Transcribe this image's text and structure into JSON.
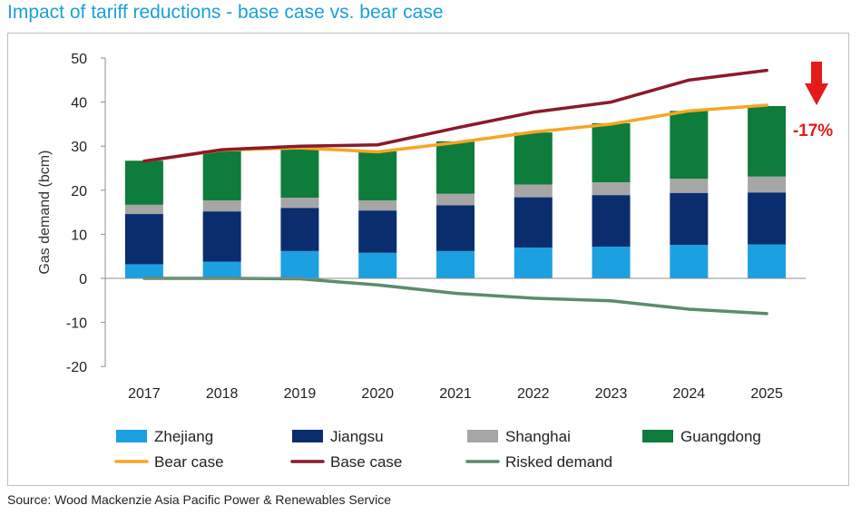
{
  "title": "Impact of tariff reductions - base case vs. bear case",
  "source": "Source: Wood Mackenzie Asia Pacific Power & Renewables Service",
  "chart_data": {
    "type": "bar",
    "stacked": true,
    "categories": [
      "2017",
      "2018",
      "2019",
      "2020",
      "2021",
      "2022",
      "2023",
      "2024",
      "2025"
    ],
    "ylabel": "Gas demand (bcm)",
    "ylim": [
      -20,
      50
    ],
    "yticks": [
      "-20",
      "-10",
      "0",
      "10",
      "20",
      "30",
      "40",
      "50"
    ],
    "grid": false,
    "legend_placement": "bottom",
    "series": [
      {
        "name": "Zhejiang",
        "kind": "bar",
        "color": "#1ba0e2",
        "values": [
          3.2,
          3.8,
          6.2,
          5.8,
          6.2,
          7.0,
          7.2,
          7.6,
          7.7
        ]
      },
      {
        "name": "Jiangsu",
        "kind": "bar",
        "color": "#0a2d6e",
        "values": [
          11.4,
          11.4,
          9.8,
          9.6,
          10.4,
          11.4,
          11.7,
          11.8,
          11.8
        ]
      },
      {
        "name": "Shanghai",
        "kind": "bar",
        "color": "#a6a6a6",
        "values": [
          2.1,
          2.5,
          2.3,
          2.3,
          2.6,
          2.9,
          2.9,
          3.2,
          3.6
        ]
      },
      {
        "name": "Guangdong",
        "kind": "bar",
        "color": "#0e7c3b",
        "values": [
          10.0,
          11.3,
          11.4,
          11.1,
          11.9,
          11.8,
          13.4,
          15.4,
          16.0
        ]
      },
      {
        "name": "Bear case",
        "kind": "line",
        "color": "#f5a623",
        "values": [
          26.6,
          29.1,
          29.6,
          28.7,
          30.8,
          33.2,
          35.0,
          38.0,
          39.3
        ]
      },
      {
        "name": "Base case",
        "kind": "line",
        "color": "#8b1a2b",
        "values": [
          26.6,
          29.2,
          30.0,
          30.3,
          34.1,
          37.7,
          40.0,
          45.0,
          47.2
        ]
      },
      {
        "name": "Risked demand",
        "kind": "line",
        "color": "#5b8c6b",
        "values": [
          0.0,
          0.0,
          -0.1,
          -1.5,
          -3.4,
          -4.5,
          -5.1,
          -7.0,
          -8.0
        ]
      }
    ],
    "annotation": {
      "text": "-17%",
      "color": "#e31b1b",
      "arrow": "down-arrow"
    }
  }
}
